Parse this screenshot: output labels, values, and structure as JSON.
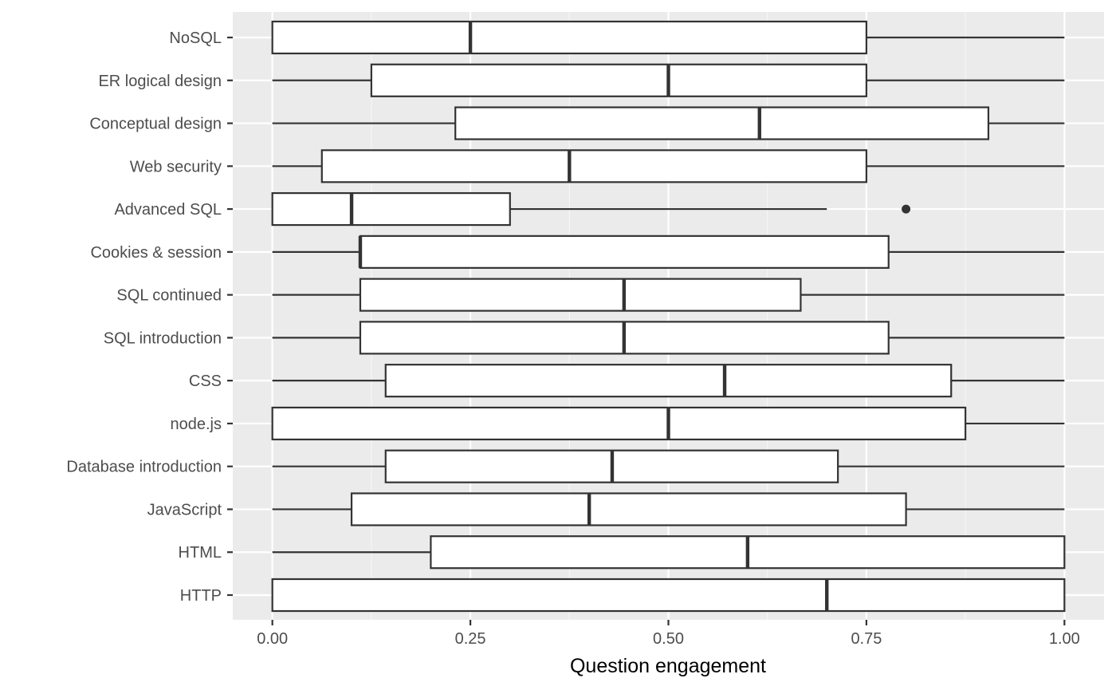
{
  "chart_data": {
    "type": "boxplot",
    "orientation": "horizontal",
    "title": "",
    "xlabel": "Question engagement",
    "ylabel": "",
    "xlim": [
      -0.05,
      1.05
    ],
    "x_ticks": [
      0,
      0.25,
      0.5,
      0.75,
      1
    ],
    "x_tick_labels": [
      "0.00",
      "0.25",
      "0.50",
      "0.75",
      "1.00"
    ],
    "grid": true,
    "legend": "none",
    "colors": {
      "panel": "#ebebeb",
      "grid_major": "#ffffff",
      "box_fill": "#ffffff",
      "box_line": "#333333",
      "tick_text": "#4d4d4d"
    },
    "categories": [
      "NoSQL",
      "ER logical design",
      "Conceptual design",
      "Web security",
      "Advanced SQL",
      "Cookies & session",
      "SQL continued",
      "SQL introduction",
      "CSS",
      "node.js",
      "Database introduction",
      "JavaScript",
      "HTML",
      "HTTP"
    ],
    "boxes": [
      {
        "category": "NoSQL",
        "whisker_low": 0,
        "q1": 0,
        "median": 0.25,
        "q3": 0.75,
        "whisker_high": 1,
        "outliers": []
      },
      {
        "category": "ER logical design",
        "whisker_low": 0,
        "q1": 0.125,
        "median": 0.5,
        "q3": 0.75,
        "whisker_high": 1,
        "outliers": []
      },
      {
        "category": "Conceptual design",
        "whisker_low": 0,
        "q1": 0.231,
        "median": 0.615,
        "q3": 0.904,
        "whisker_high": 1,
        "outliers": []
      },
      {
        "category": "Web security",
        "whisker_low": 0,
        "q1": 0.0625,
        "median": 0.375,
        "q3": 0.75,
        "whisker_high": 1,
        "outliers": []
      },
      {
        "category": "Advanced SQL",
        "whisker_low": 0,
        "q1": 0,
        "median": 0.1,
        "q3": 0.3,
        "whisker_high": 0.7,
        "outliers": [
          0.8
        ]
      },
      {
        "category": "Cookies & session",
        "whisker_low": 0,
        "q1": 0.111,
        "median": 0.111,
        "q3": 0.778,
        "whisker_high": 1,
        "outliers": []
      },
      {
        "category": "SQL continued",
        "whisker_low": 0,
        "q1": 0.111,
        "median": 0.444,
        "q3": 0.667,
        "whisker_high": 1,
        "outliers": []
      },
      {
        "category": "SQL introduction",
        "whisker_low": 0,
        "q1": 0.111,
        "median": 0.444,
        "q3": 0.778,
        "whisker_high": 1,
        "outliers": []
      },
      {
        "category": "CSS",
        "whisker_low": 0,
        "q1": 0.143,
        "median": 0.571,
        "q3": 0.857,
        "whisker_high": 1,
        "outliers": []
      },
      {
        "category": "node.js",
        "whisker_low": 0,
        "q1": 0,
        "median": 0.5,
        "q3": 0.875,
        "whisker_high": 1,
        "outliers": []
      },
      {
        "category": "Database introduction",
        "whisker_low": 0,
        "q1": 0.143,
        "median": 0.429,
        "q3": 0.714,
        "whisker_high": 1,
        "outliers": []
      },
      {
        "category": "JavaScript",
        "whisker_low": 0,
        "q1": 0.1,
        "median": 0.4,
        "q3": 0.8,
        "whisker_high": 1,
        "outliers": []
      },
      {
        "category": "HTML",
        "whisker_low": 0,
        "q1": 0.2,
        "median": 0.6,
        "q3": 1,
        "whisker_high": 1,
        "outliers": []
      },
      {
        "category": "HTTP",
        "whisker_low": 0,
        "q1": 0,
        "median": 0.7,
        "q3": 1,
        "whisker_high": 1,
        "outliers": []
      }
    ]
  }
}
